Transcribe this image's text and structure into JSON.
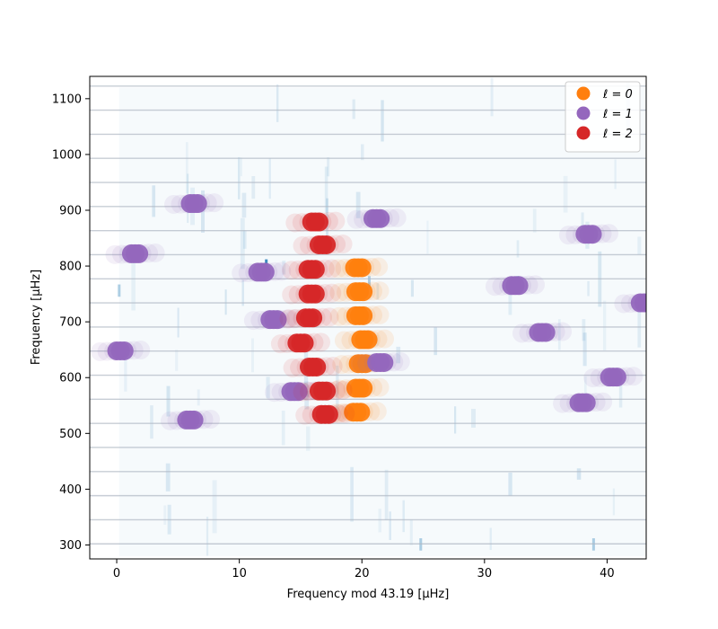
{
  "chart_data": {
    "type": "scatter",
    "title": "",
    "xlabel": "Frequency mod 43.19 [μHz]",
    "ylabel": "Frequency [μHz]",
    "xlim": [
      -2.2,
      43.19
    ],
    "ylim": [
      275,
      1140
    ],
    "xticks": [
      0,
      10,
      20,
      30,
      40
    ],
    "yticks": [
      300,
      400,
      500,
      600,
      700,
      800,
      900,
      1000,
      1100
    ],
    "grid": false,
    "legend_position": "top-right",
    "background": "echelle-heatmap",
    "colors": {
      "l0": "#ff7f0e",
      "l1": "#9467bd",
      "l2": "#d62728",
      "heatmap": "#1f77b4",
      "order_lines": "#b0b8c4"
    },
    "series": [
      {
        "name": "ℓ = 0",
        "color": "#ff7f0e",
        "points": [
          [
            19.6,
            538
          ],
          [
            19.8,
            581
          ],
          [
            20.0,
            625
          ],
          [
            20.2,
            668
          ],
          [
            19.8,
            711
          ],
          [
            19.8,
            754
          ],
          [
            19.7,
            797
          ]
        ]
      },
      {
        "name": "ℓ = 1",
        "color": "#9467bd",
        "points": [
          [
            6.0,
            524
          ],
          [
            14.5,
            575
          ],
          [
            21.5,
            627
          ],
          [
            0.3,
            648
          ],
          [
            12.8,
            704
          ],
          [
            6.3,
            912
          ],
          [
            21.2,
            885
          ],
          [
            38.0,
            555
          ],
          [
            40.5,
            601
          ],
          [
            34.7,
            681
          ],
          [
            43.0,
            734
          ],
          [
            32.5,
            765
          ],
          [
            11.8,
            789
          ],
          [
            1.5,
            822
          ],
          [
            38.5,
            857
          ]
        ]
      },
      {
        "name": "ℓ = 2",
        "color": "#d62728",
        "points": [
          [
            17.0,
            534
          ],
          [
            16.8,
            576
          ],
          [
            16.0,
            619
          ],
          [
            15.0,
            662
          ],
          [
            15.7,
            707
          ],
          [
            15.9,
            750
          ],
          [
            15.9,
            794
          ],
          [
            16.8,
            838
          ],
          [
            16.2,
            879
          ]
        ]
      }
    ],
    "legend": [
      {
        "label": "ℓ = 0",
        "color": "#ff7f0e"
      },
      {
        "label": "ℓ = 1",
        "color": "#9467bd"
      },
      {
        "label": "ℓ = 2",
        "color": "#d62728"
      }
    ]
  }
}
